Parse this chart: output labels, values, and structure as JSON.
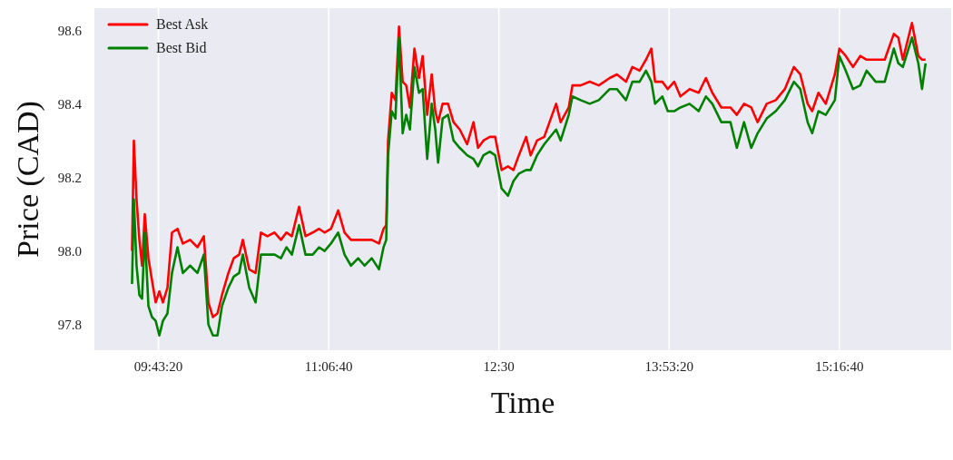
{
  "chart_data": {
    "type": "line",
    "xlabel": "Time",
    "ylabel": "Price (CAD)",
    "x": [
      9.507,
      9.522,
      9.544,
      9.567,
      9.589,
      9.611,
      9.641,
      9.67,
      9.7,
      9.73,
      9.759,
      9.796,
      9.833,
      9.878,
      9.922,
      9.981,
      10.041,
      10.093,
      10.13,
      10.167,
      10.204,
      10.241,
      10.293,
      10.337,
      10.381,
      10.411,
      10.463,
      10.515,
      10.559,
      10.611,
      10.67,
      10.722,
      10.767,
      10.811,
      10.87,
      10.922,
      10.981,
      11.033,
      11.078,
      11.13,
      11.189,
      11.241,
      11.293,
      11.352,
      11.404,
      11.463,
      11.522,
      11.559,
      11.581,
      11.596,
      11.626,
      11.656,
      11.685,
      11.715,
      11.744,
      11.774,
      11.811,
      11.848,
      11.878,
      11.915,
      11.952,
      11.981,
      12.004,
      12.041,
      12.085,
      12.13,
      12.181,
      12.241,
      12.293,
      12.33,
      12.374,
      12.426,
      12.47,
      12.522,
      12.574,
      12.619,
      12.663,
      12.722,
      12.759,
      12.811,
      12.87,
      12.967,
      13.004,
      13.07,
      13.1,
      13.167,
      13.241,
      13.315,
      13.404,
      13.463,
      13.537,
      13.589,
      13.648,
      13.7,
      13.744,
      13.774,
      13.833,
      13.878,
      13.93,
      13.981,
      14.056,
      14.13,
      14.189,
      14.241,
      14.315,
      14.389,
      14.441,
      14.5,
      14.559,
      14.611,
      14.685,
      14.759,
      14.833,
      14.907,
      14.959,
      15.019,
      15.056,
      15.107,
      15.167,
      15.241,
      15.278,
      15.33,
      15.389,
      15.448,
      15.5,
      15.574,
      15.648,
      15.722,
      15.759,
      15.796,
      15.87,
      15.922,
      15.952,
      15.981
    ],
    "series": [
      {
        "name": "Best Ask",
        "color": "#ff0000",
        "values": [
          98.0,
          98.3,
          98.14,
          98.03,
          97.96,
          98.1,
          97.98,
          97.92,
          97.86,
          97.89,
          97.86,
          97.9,
          98.05,
          98.06,
          98.02,
          98.03,
          98.01,
          98.04,
          97.86,
          97.82,
          97.83,
          97.88,
          97.94,
          97.98,
          97.99,
          98.03,
          97.95,
          97.94,
          98.05,
          98.04,
          98.05,
          98.03,
          98.05,
          98.04,
          98.12,
          98.04,
          98.05,
          98.06,
          98.05,
          98.06,
          98.11,
          98.05,
          98.03,
          98.03,
          98.03,
          98.03,
          98.02,
          98.06,
          98.07,
          98.3,
          98.43,
          98.41,
          98.61,
          98.46,
          98.45,
          98.39,
          98.55,
          98.47,
          98.53,
          98.37,
          98.48,
          98.38,
          98.35,
          98.4,
          98.4,
          98.35,
          98.33,
          98.29,
          98.35,
          98.28,
          98.3,
          98.31,
          98.31,
          98.22,
          98.23,
          98.22,
          98.26,
          98.31,
          98.26,
          98.3,
          98.31,
          98.4,
          98.35,
          98.39,
          98.45,
          98.45,
          98.46,
          98.45,
          98.47,
          98.48,
          98.46,
          98.5,
          98.49,
          98.52,
          98.55,
          98.46,
          98.46,
          98.44,
          98.46,
          98.42,
          98.44,
          98.43,
          98.47,
          98.43,
          98.39,
          98.39,
          98.37,
          98.4,
          98.39,
          98.35,
          98.4,
          98.41,
          98.44,
          98.5,
          98.48,
          98.4,
          98.38,
          98.43,
          98.4,
          98.48,
          98.55,
          98.53,
          98.5,
          98.53,
          98.52,
          98.52,
          98.52,
          98.59,
          98.58,
          98.52,
          98.62,
          98.53,
          98.52,
          98.52
        ]
      },
      {
        "name": "Best Bid",
        "color": "#008000",
        "values": [
          97.91,
          98.14,
          97.96,
          97.88,
          97.87,
          98.05,
          97.85,
          97.82,
          97.81,
          97.77,
          97.81,
          97.83,
          97.94,
          98.01,
          97.94,
          97.96,
          97.94,
          97.99,
          97.8,
          97.77,
          97.77,
          97.85,
          97.9,
          97.93,
          97.94,
          97.99,
          97.9,
          97.86,
          97.99,
          97.99,
          97.99,
          97.98,
          98.01,
          97.99,
          98.07,
          97.99,
          97.99,
          98.01,
          98.0,
          98.02,
          98.05,
          97.99,
          97.96,
          97.98,
          97.96,
          97.98,
          97.95,
          98.01,
          98.03,
          98.26,
          98.38,
          98.36,
          98.58,
          98.32,
          98.37,
          98.33,
          98.5,
          98.43,
          98.44,
          98.25,
          98.4,
          98.33,
          98.24,
          98.36,
          98.37,
          98.3,
          98.28,
          98.26,
          98.25,
          98.23,
          98.26,
          98.27,
          98.26,
          98.17,
          98.15,
          98.19,
          98.21,
          98.22,
          98.22,
          98.26,
          98.29,
          98.33,
          98.3,
          98.37,
          98.42,
          98.41,
          98.4,
          98.41,
          98.44,
          98.44,
          98.41,
          98.46,
          98.46,
          98.49,
          98.46,
          98.4,
          98.42,
          98.38,
          98.38,
          98.39,
          98.4,
          98.38,
          98.42,
          98.4,
          98.35,
          98.35,
          98.28,
          98.35,
          98.28,
          98.32,
          98.36,
          98.38,
          98.41,
          98.46,
          98.44,
          98.35,
          98.32,
          98.38,
          98.37,
          98.41,
          98.53,
          98.49,
          98.44,
          98.45,
          98.49,
          98.46,
          98.46,
          98.55,
          98.51,
          98.5,
          98.58,
          98.51,
          98.44,
          98.51
        ]
      }
    ],
    "xlim": [
      9.2,
      16.19
    ],
    "xticks": [
      {
        "value": 9.7222,
        "label": "09:43:20"
      },
      {
        "value": 11.1111,
        "label": "11:06:40"
      },
      {
        "value": 12.5,
        "label": "12:30"
      },
      {
        "value": 13.8889,
        "label": "13:53:20"
      },
      {
        "value": 15.2778,
        "label": "15:16:40"
      }
    ],
    "ylim": [
      97.73,
      98.66
    ],
    "yticks": [
      97.8,
      {
        "value": 98.0,
        "label": "98.0"
      },
      98.2,
      98.4,
      98.6
    ],
    "grid": true,
    "legend": "top left"
  }
}
